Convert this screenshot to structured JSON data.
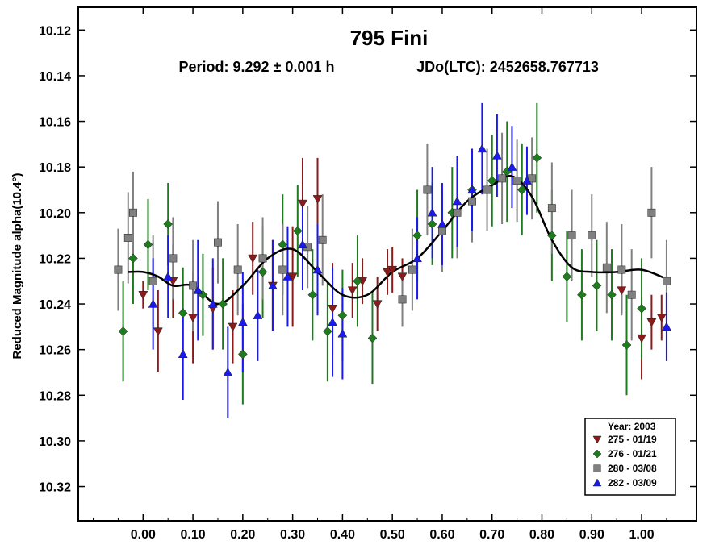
{
  "chart_data": {
    "type": "scatter",
    "title": "795 Fini",
    "subtitle_period": "Period: 9.292 ± 0.001 h",
    "subtitle_epoch": "JDo(LTC): 2452658.767713",
    "xlabel": "",
    "ylabel": "Reduced Magnitude alpha(10.4°)",
    "xlim": [
      -0.13,
      1.11
    ],
    "ylim": [
      10.11,
      10.335
    ],
    "y_inverted": true,
    "x_ticks": [
      0.0,
      0.1,
      0.2,
      0.3,
      0.4,
      0.5,
      0.6,
      0.7,
      0.8,
      0.9,
      1.0
    ],
    "x_tick_labels": [
      "0.00",
      "0.10",
      "0.20",
      "0.30",
      "0.40",
      "0.50",
      "0.60",
      "0.70",
      "0.80",
      "0.90",
      "1.00"
    ],
    "y_ticks": [
      10.12,
      10.14,
      10.16,
      10.18,
      10.2,
      10.22,
      10.24,
      10.26,
      10.28,
      10.3,
      10.32
    ],
    "y_tick_labels": [
      "10.12",
      "10.14",
      "10.16",
      "10.18",
      "10.20",
      "10.22",
      "10.24",
      "10.26",
      "10.28",
      "10.30",
      "10.32"
    ],
    "legend": {
      "title": "Year: 2003",
      "position": "bottom-right",
      "entries": [
        {
          "label": "275 - 01/19",
          "color": "#8b1a1a",
          "marker": "triangle-down"
        },
        {
          "label": "276 - 01/21",
          "color": "#1e7b1e",
          "marker": "diamond"
        },
        {
          "label": "280 - 03/08",
          "color": "#808080",
          "marker": "square"
        },
        {
          "label": "282 - 03/09",
          "color": "#1a1aee",
          "marker": "triangle-up"
        }
      ]
    },
    "fit_curve": {
      "x": [
        -0.03,
        0.0,
        0.03,
        0.06,
        0.1,
        0.15,
        0.2,
        0.25,
        0.3,
        0.35,
        0.4,
        0.45,
        0.5,
        0.55,
        0.6,
        0.65,
        0.7,
        0.74,
        0.78,
        0.82,
        0.86,
        0.9,
        0.95,
        1.0,
        1.05
      ],
      "y": [
        10.226,
        10.226,
        10.228,
        10.232,
        10.232,
        10.24,
        10.232,
        10.22,
        10.216,
        10.226,
        10.236,
        10.236,
        10.226,
        10.22,
        10.208,
        10.195,
        10.188,
        10.184,
        10.193,
        10.212,
        10.224,
        10.226,
        10.226,
        10.225,
        10.229
      ]
    },
    "series": [
      {
        "name": "275 - 01/19",
        "x": [
          0.0,
          0.03,
          0.06,
          0.1,
          0.14,
          0.18,
          0.22,
          0.26,
          0.3,
          0.32,
          0.35,
          0.38,
          0.42,
          0.44,
          0.47,
          0.49,
          0.5,
          0.52,
          0.96,
          1.0,
          1.02,
          1.04
        ],
        "y": [
          10.236,
          10.252,
          10.23,
          10.246,
          10.242,
          10.25,
          10.22,
          10.232,
          10.228,
          10.196,
          10.194,
          10.242,
          10.234,
          10.23,
          10.24,
          10.226,
          10.225,
          10.228,
          10.234,
          10.255,
          10.248,
          10.246
        ],
        "err": [
          0.006,
          0.018,
          0.016,
          0.02,
          0.018,
          0.016,
          0.016,
          0.02,
          0.022,
          0.02,
          0.018,
          0.02,
          0.012,
          0.01,
          0.012,
          0.01,
          0.01,
          0.008,
          0.01,
          0.018,
          0.012,
          0.01
        ]
      },
      {
        "name": "276 - 01/21",
        "x": [
          -0.04,
          -0.02,
          0.01,
          0.05,
          0.08,
          0.12,
          0.16,
          0.2,
          0.24,
          0.28,
          0.31,
          0.34,
          0.37,
          0.4,
          0.43,
          0.46,
          0.55,
          0.58,
          0.62,
          0.66,
          0.7,
          0.73,
          0.76,
          0.79,
          0.82,
          0.85,
          0.88,
          0.91,
          0.94,
          0.97,
          1.0
        ],
        "y": [
          10.252,
          10.22,
          10.214,
          10.205,
          10.244,
          10.236,
          10.24,
          10.262,
          10.226,
          10.214,
          10.208,
          10.236,
          10.252,
          10.245,
          10.23,
          10.255,
          10.21,
          10.205,
          10.2,
          10.19,
          10.186,
          10.182,
          10.19,
          10.176,
          10.21,
          10.228,
          10.236,
          10.232,
          10.236,
          10.258,
          10.242
        ],
        "err": [
          0.022,
          0.02,
          0.02,
          0.018,
          0.02,
          0.018,
          0.02,
          0.022,
          0.02,
          0.022,
          0.02,
          0.02,
          0.022,
          0.02,
          0.02,
          0.02,
          0.02,
          0.018,
          0.02,
          0.018,
          0.02,
          0.022,
          0.02,
          0.024,
          0.02,
          0.02,
          0.02,
          0.02,
          0.02,
          0.022,
          0.022
        ]
      },
      {
        "name": "280 - 03/08",
        "x": [
          -0.05,
          -0.03,
          -0.02,
          0.02,
          0.06,
          0.1,
          0.15,
          0.19,
          0.24,
          0.28,
          0.33,
          0.36,
          0.52,
          0.54,
          0.57,
          0.6,
          0.63,
          0.66,
          0.69,
          0.72,
          0.75,
          0.78,
          0.82,
          0.86,
          0.9,
          0.93,
          0.96,
          0.98,
          1.02,
          1.05
        ],
        "y": [
          10.225,
          10.211,
          10.2,
          10.23,
          10.22,
          10.232,
          10.213,
          10.225,
          10.22,
          10.225,
          10.215,
          10.212,
          10.238,
          10.225,
          10.19,
          10.208,
          10.2,
          10.195,
          10.19,
          10.185,
          10.186,
          10.185,
          10.198,
          10.21,
          10.21,
          10.224,
          10.225,
          10.236,
          10.2,
          10.23
        ],
        "err": [
          0.018,
          0.02,
          0.018,
          0.02,
          0.018,
          0.02,
          0.018,
          0.02,
          0.018,
          0.02,
          0.018,
          0.02,
          0.012,
          0.018,
          0.02,
          0.018,
          0.02,
          0.018,
          0.018,
          0.02,
          0.018,
          0.018,
          0.02,
          0.02,
          0.018,
          0.02,
          0.02,
          0.02,
          0.02,
          0.018
        ]
      },
      {
        "name": "282 - 03/09",
        "x": [
          0.02,
          0.05,
          0.08,
          0.11,
          0.14,
          0.17,
          0.2,
          0.23,
          0.26,
          0.29,
          0.32,
          0.35,
          0.38,
          0.4,
          0.55,
          0.58,
          0.6,
          0.63,
          0.66,
          0.68,
          0.71,
          0.74,
          0.77,
          1.05
        ],
        "y": [
          10.24,
          10.228,
          10.262,
          10.234,
          10.24,
          10.27,
          10.248,
          10.245,
          10.232,
          10.228,
          10.214,
          10.225,
          10.248,
          10.253,
          10.22,
          10.2,
          10.205,
          10.195,
          10.19,
          10.172,
          10.175,
          10.18,
          10.186,
          10.25
        ],
        "err": [
          0.02,
          0.018,
          0.02,
          0.022,
          0.02,
          0.02,
          0.022,
          0.02,
          0.02,
          0.022,
          0.02,
          0.02,
          0.024,
          0.02,
          0.018,
          0.02,
          0.018,
          0.02,
          0.018,
          0.02,
          0.018,
          0.018,
          0.015,
          0.015
        ]
      }
    ]
  }
}
